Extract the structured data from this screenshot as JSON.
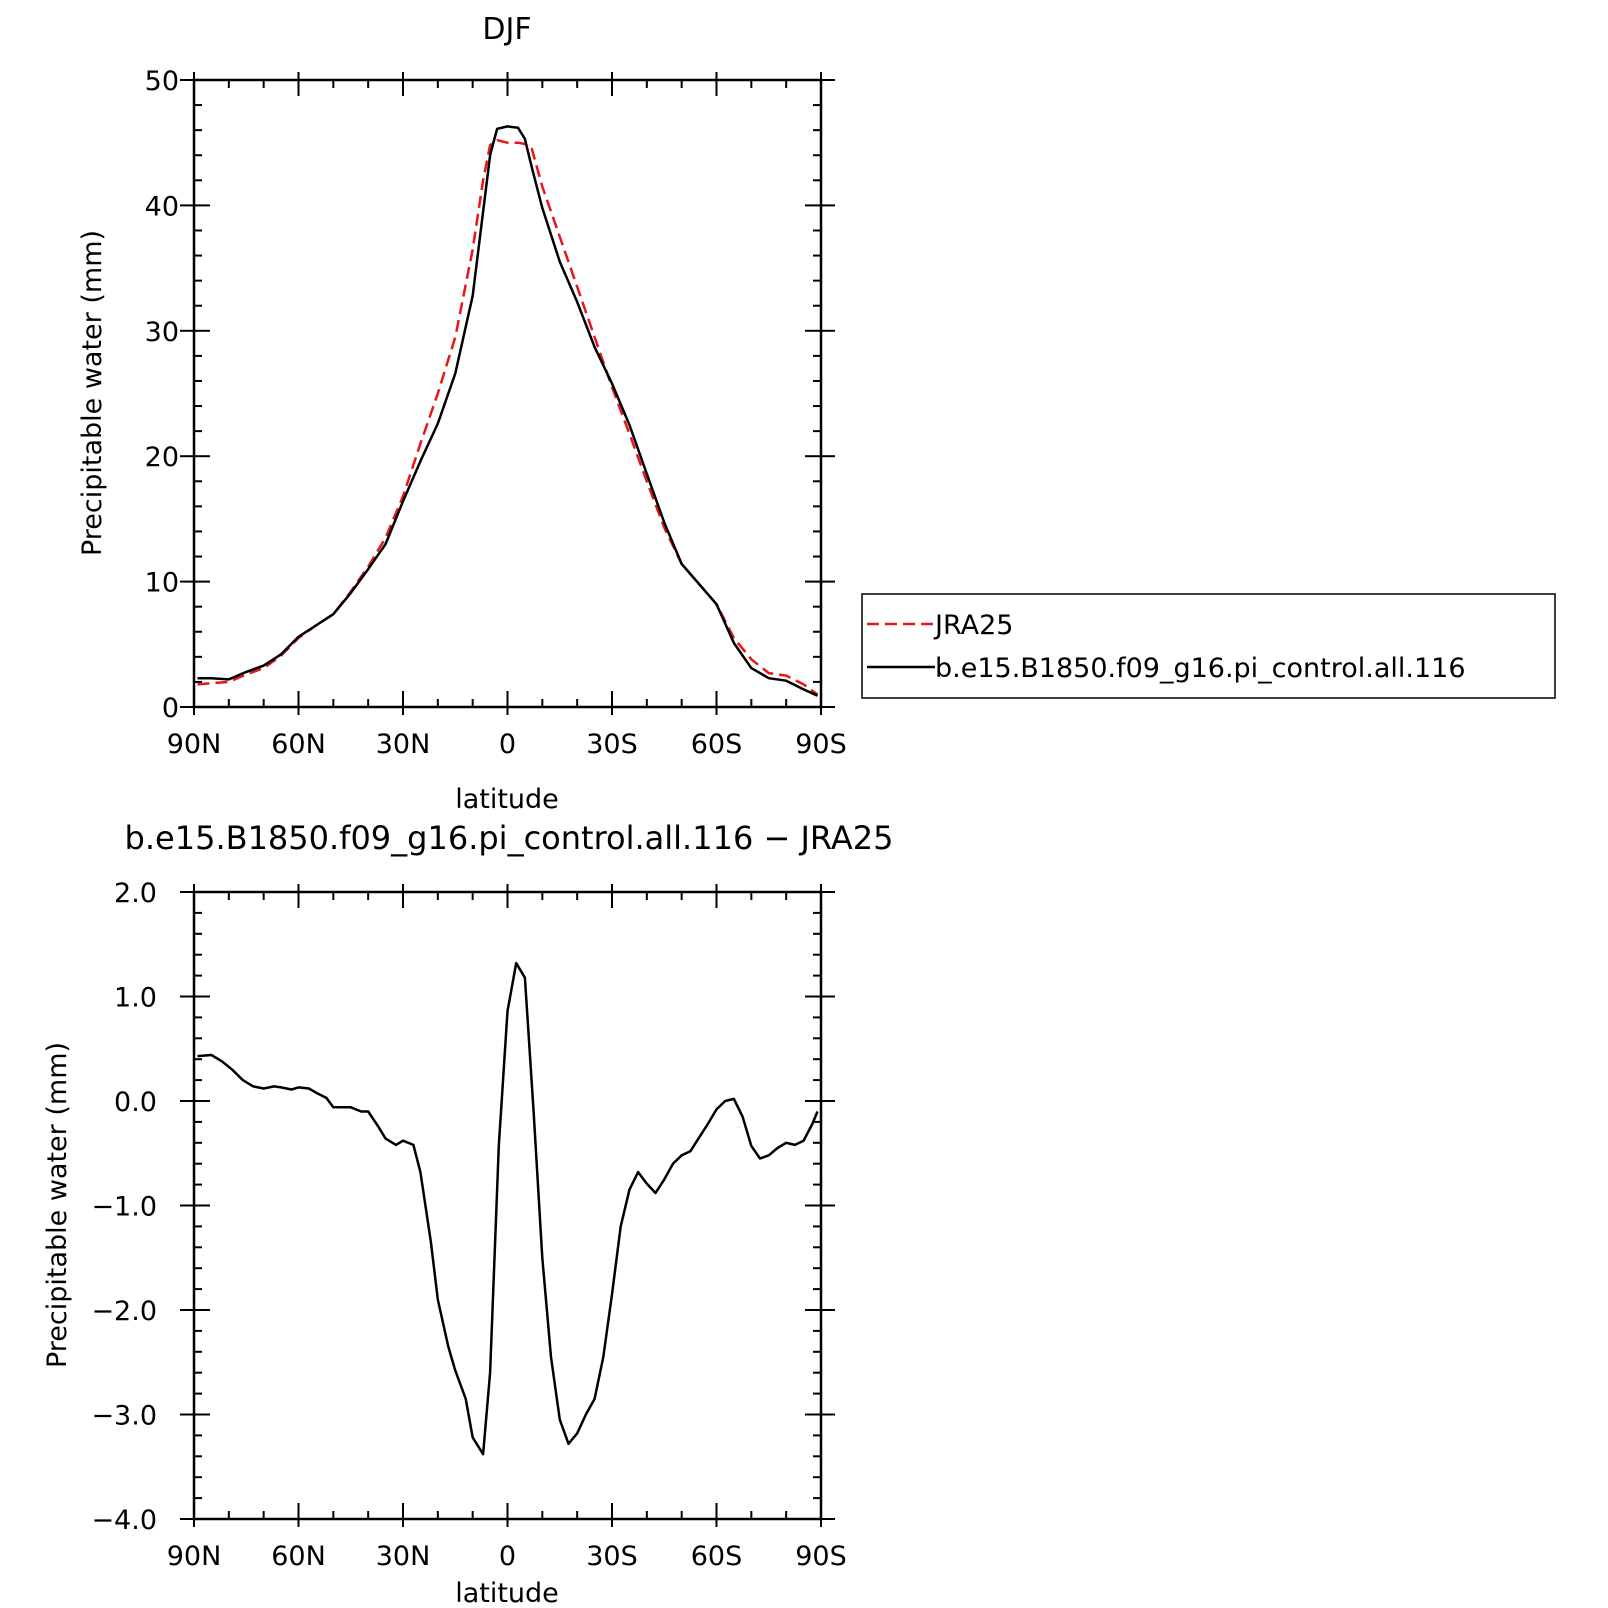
{
  "chart_data": [
    {
      "type": "line",
      "title": "DJF",
      "xlabel": "latitude",
      "ylabel": "Precipitable water (mm)",
      "xlim": [
        90,
        -90
      ],
      "ylim": [
        0,
        50
      ],
      "x_ticks": [
        90,
        60,
        30,
        0,
        -30,
        -60,
        -90
      ],
      "x_tick_labels": [
        "90N",
        "60N",
        "30N",
        "0",
        "30S",
        "60S",
        "90S"
      ],
      "y_ticks": [
        0,
        10,
        20,
        30,
        40,
        50
      ],
      "y_tick_labels": [
        "0",
        "10",
        "20",
        "30",
        "40",
        "50"
      ],
      "legend": "outside-right",
      "series": [
        {
          "name": "JRA25",
          "color": "#e8161b",
          "dash": "dashed",
          "x": [
            89,
            85,
            80,
            75,
            70,
            65,
            60,
            55,
            50,
            45,
            40,
            35,
            30,
            25,
            20,
            15,
            10,
            7,
            5,
            3,
            0,
            -3,
            -5,
            -7,
            -10,
            -15,
            -20,
            -25,
            -30,
            -35,
            -40,
            -45,
            -50,
            -55,
            -60,
            -65,
            -70,
            -75,
            -80,
            -85,
            -89
          ],
          "y": [
            1.8,
            1.9,
            2.0,
            2.6,
            3.1,
            4.1,
            5.5,
            6.5,
            7.4,
            9.2,
            11.2,
            13.5,
            16.8,
            21.0,
            25.0,
            29.5,
            36.5,
            42.0,
            44.8,
            45.2,
            45.0,
            45.0,
            44.9,
            44.5,
            41.5,
            37.5,
            33.5,
            29.5,
            25.5,
            21.8,
            18.0,
            14.3,
            11.4,
            9.8,
            8.2,
            5.5,
            3.8,
            2.7,
            2.5,
            1.8,
            1.0
          ]
        },
        {
          "name": "b.e15.B1850.f09_g16.pi_control.all.116",
          "color": "#000000",
          "dash": "solid",
          "x": [
            89,
            85,
            80,
            75,
            70,
            65,
            60,
            55,
            50,
            45,
            40,
            35,
            30,
            25,
            20,
            15,
            10,
            7,
            5,
            3,
            0,
            -3,
            -5,
            -7,
            -10,
            -15,
            -20,
            -25,
            -30,
            -35,
            -40,
            -45,
            -50,
            -55,
            -60,
            -65,
            -70,
            -75,
            -80,
            -85,
            -89
          ],
          "y": [
            2.3,
            2.3,
            2.2,
            2.8,
            3.3,
            4.2,
            5.6,
            6.5,
            7.4,
            9.1,
            11.0,
            13.0,
            16.4,
            19.6,
            22.6,
            26.6,
            32.8,
            39.5,
            44.0,
            46.1,
            46.3,
            46.2,
            45.3,
            43.0,
            39.8,
            35.5,
            32.3,
            28.7,
            25.8,
            22.5,
            18.6,
            14.7,
            11.4,
            9.8,
            8.2,
            5.1,
            3.1,
            2.3,
            2.1,
            1.4,
            0.9
          ]
        }
      ]
    },
    {
      "type": "line",
      "title": "b.e15.B1850.f09_g16.pi_control.all.116 − JRA25",
      "xlabel": "latitude",
      "ylabel": "Precipitable water (mm)",
      "xlim": [
        90,
        -90
      ],
      "ylim": [
        -4,
        2
      ],
      "x_ticks": [
        90,
        60,
        30,
        0,
        -30,
        -60,
        -90
      ],
      "x_tick_labels": [
        "90N",
        "60N",
        "30N",
        "0",
        "30S",
        "60S",
        "90S"
      ],
      "y_ticks": [
        2,
        1,
        0,
        -1,
        -2,
        -3,
        -4
      ],
      "y_tick_labels": [
        "2.0",
        "1.0",
        "0.0",
        "−1.0",
        "−2.0",
        "−3.0",
        "−4.0"
      ],
      "series": [
        {
          "name": "b.e15.B1850.f09_g16.pi_control.all.116 − JRA25",
          "color": "#000000",
          "dash": "solid",
          "x": [
            89,
            85,
            82,
            79,
            76,
            73,
            70,
            67,
            65,
            62,
            60,
            57,
            55,
            52,
            50,
            47,
            45,
            42,
            40,
            37,
            35,
            32,
            30,
            27,
            25,
            22,
            20,
            17,
            15,
            12,
            10,
            7,
            5,
            2.5,
            0,
            -2.5,
            -5,
            -7.5,
            -10,
            -12.5,
            -15,
            -17.5,
            -20,
            -22.5,
            -25,
            -27.5,
            -30,
            -32.5,
            -35,
            -37.5,
            -40,
            -42.5,
            -45,
            -47.5,
            -50,
            -52.5,
            -55,
            -57.5,
            -60,
            -62.5,
            -65,
            -67.5,
            -70,
            -72.5,
            -75,
            -77.5,
            -80,
            -82.5,
            -85,
            -87.5,
            -89
          ],
          "y": [
            0.43,
            0.44,
            0.38,
            0.3,
            0.2,
            0.14,
            0.12,
            0.14,
            0.13,
            0.11,
            0.13,
            0.12,
            0.08,
            0.03,
            -0.06,
            -0.06,
            -0.06,
            -0.1,
            -0.1,
            -0.25,
            -0.36,
            -0.42,
            -0.38,
            -0.42,
            -0.68,
            -1.35,
            -1.9,
            -2.35,
            -2.58,
            -2.85,
            -3.22,
            -3.38,
            -2.6,
            -0.43,
            0.86,
            1.32,
            1.18,
            -0.1,
            -1.5,
            -2.45,
            -3.05,
            -3.28,
            -3.18,
            -3.0,
            -2.85,
            -2.45,
            -1.85,
            -1.2,
            -0.85,
            -0.68,
            -0.79,
            -0.88,
            -0.75,
            -0.6,
            -0.52,
            -0.48,
            -0.35,
            -0.22,
            -0.08,
            0.0,
            0.02,
            -0.15,
            -0.43,
            -0.55,
            -0.52,
            -0.45,
            -0.4,
            -0.42,
            -0.38,
            -0.22,
            -0.1
          ]
        }
      ]
    }
  ]
}
